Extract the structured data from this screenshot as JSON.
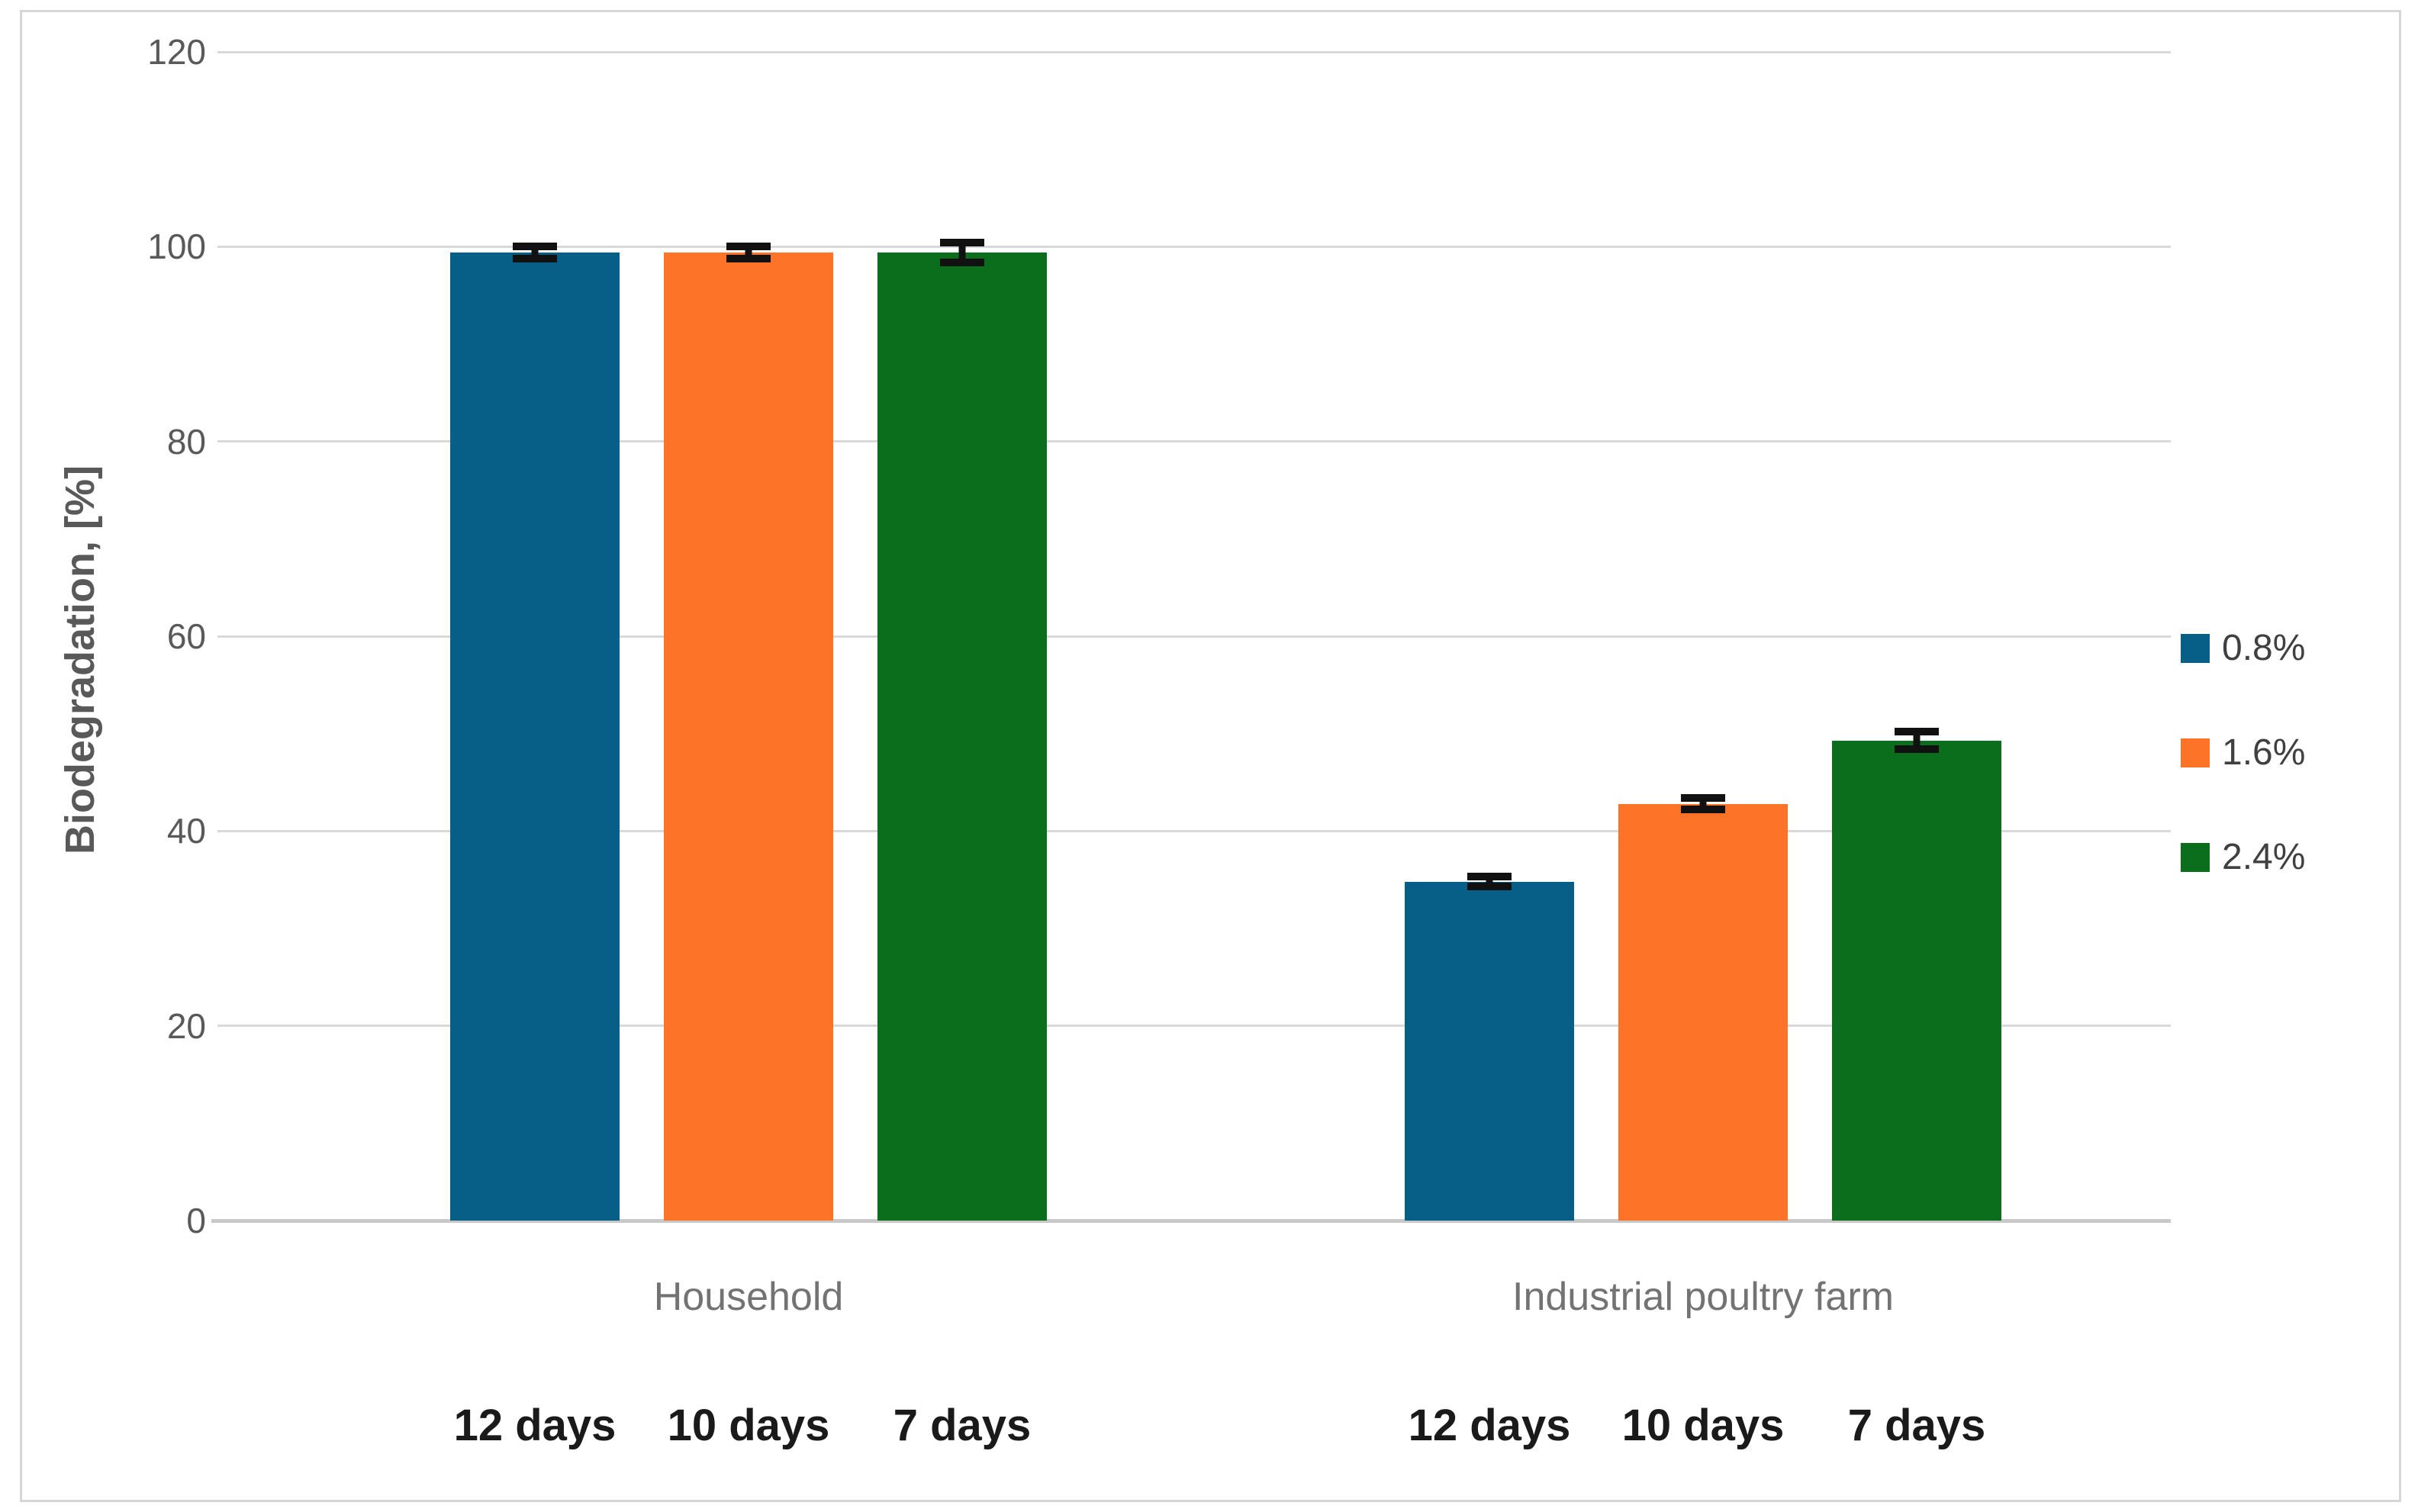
{
  "chart_data": {
    "type": "bar",
    "title": "",
    "ylabel": "Biodegradation, [%]",
    "xlabel": "",
    "ylim": [
      0,
      120
    ],
    "yticks": [
      0,
      20,
      40,
      60,
      80,
      100,
      120
    ],
    "grid": true,
    "legend_position": "right",
    "series": [
      {
        "name": "0.8%",
        "color": "#075E86"
      },
      {
        "name": "1.6%",
        "color": "#FD7428"
      },
      {
        "name": "2.4%",
        "color": "#0B6E1D"
      }
    ],
    "groups": [
      {
        "label": "Household",
        "bars": [
          {
            "series": "0.8%",
            "day": "12 days",
            "value": 99.4,
            "error": 1.0
          },
          {
            "series": "1.6%",
            "day": "10 days",
            "value": 99.4,
            "error": 1.0
          },
          {
            "series": "2.4%",
            "day": "7 days",
            "value": 99.4,
            "error": 1.4
          }
        ]
      },
      {
        "label": "Industrial poultry farm",
        "bars": [
          {
            "series": "0.8%",
            "day": "12 days",
            "value": 34.8,
            "error": 0.9
          },
          {
            "series": "1.6%",
            "day": "10 days",
            "value": 42.8,
            "error": 1.0
          },
          {
            "series": "2.4%",
            "day": "7 days",
            "value": 49.3,
            "error": 1.3
          }
        ]
      }
    ],
    "colors": {
      "gridline": "#D9D9D9",
      "axis_line": "#C8C8C8",
      "tick_label": "#595959",
      "axis_title": "#595959",
      "category_label": "#737373",
      "day_label": "#1A1A1A",
      "legend_label": "#404040",
      "error_bar": "#111111",
      "frame_border": "#D6D6D6"
    }
  }
}
